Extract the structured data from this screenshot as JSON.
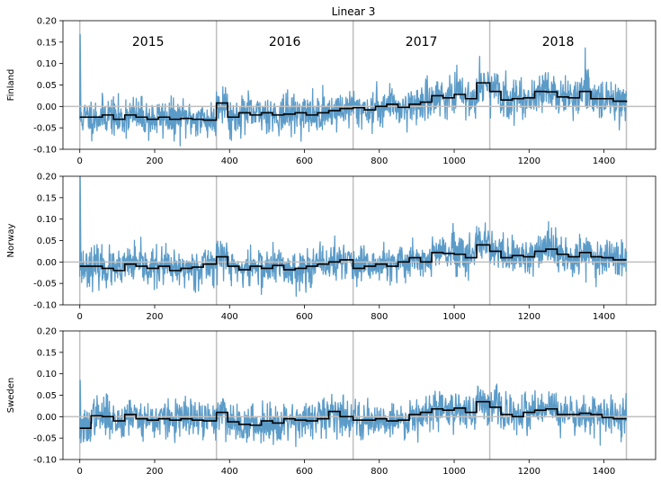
{
  "figure": {
    "title": "Linear 3"
  },
  "chart_data": [
    {
      "type": "line",
      "ylabel": "Finland",
      "title": "Linear 3",
      "xlim": [
        -45,
        1538
      ],
      "ylim": [
        -0.1,
        0.2
      ],
      "xticks": [
        0,
        200,
        400,
        600,
        800,
        1000,
        1200,
        1400
      ],
      "yticks": [
        -0.1,
        -0.05,
        0.0,
        0.05,
        0.1,
        0.15,
        0.2
      ],
      "xtick_labels": [
        "0",
        "200",
        "400",
        "600",
        "800",
        "1000",
        "1200",
        "1400"
      ],
      "ytick_labels": [
        "-0.10",
        "-0.05",
        "0.00",
        "0.05",
        "0.10",
        "0.15",
        "0.20"
      ],
      "year_boundaries": [
        0,
        365,
        730,
        1095,
        1460
      ],
      "year_labels": [
        "2015",
        "2016",
        "2017",
        "2018"
      ],
      "hline": 0.0,
      "colors": {
        "daily": "#5b9bc8",
        "fitted": "#000000",
        "reference": "#bfbfbf"
      },
      "series": [
        {
          "name": "daily",
          "seed": 11,
          "noise": 0.022,
          "start_spike": 0.168
        },
        {
          "name": "fitted",
          "steps": [
            [
              0,
              -0.025
            ],
            [
              30,
              -0.025
            ],
            [
              60,
              -0.02
            ],
            [
              90,
              -0.03
            ],
            [
              120,
              -0.02
            ],
            [
              150,
              -0.025
            ],
            [
              180,
              -0.03
            ],
            [
              210,
              -0.025
            ],
            [
              240,
              -0.03
            ],
            [
              270,
              -0.028
            ],
            [
              300,
              -0.03
            ],
            [
              330,
              -0.032
            ],
            [
              365,
              0.008
            ],
            [
              395,
              -0.025
            ],
            [
              425,
              -0.015
            ],
            [
              455,
              -0.02
            ],
            [
              485,
              -0.015
            ],
            [
              515,
              -0.02
            ],
            [
              545,
              -0.018
            ],
            [
              575,
              -0.015
            ],
            [
              605,
              -0.02
            ],
            [
              635,
              -0.015
            ],
            [
              665,
              -0.01
            ],
            [
              695,
              -0.005
            ],
            [
              730,
              -0.003
            ],
            [
              760,
              -0.008
            ],
            [
              790,
              0.0
            ],
            [
              820,
              0.005
            ],
            [
              850,
              -0.002
            ],
            [
              880,
              0.005
            ],
            [
              910,
              0.01
            ],
            [
              940,
              0.025
            ],
            [
              970,
              0.02
            ],
            [
              1000,
              0.028
            ],
            [
              1030,
              0.018
            ],
            [
              1060,
              0.055
            ],
            [
              1095,
              0.035
            ],
            [
              1125,
              0.015
            ],
            [
              1155,
              0.018
            ],
            [
              1185,
              0.02
            ],
            [
              1215,
              0.035
            ],
            [
              1245,
              0.034
            ],
            [
              1275,
              0.022
            ],
            [
              1305,
              0.02
            ],
            [
              1335,
              0.035
            ],
            [
              1365,
              0.018
            ],
            [
              1395,
              0.018
            ],
            [
              1425,
              0.012
            ],
            [
              1460,
              0.01
            ]
          ]
        }
      ]
    },
    {
      "type": "line",
      "ylabel": "Norway",
      "xlim": [
        -45,
        1538
      ],
      "ylim": [
        -0.1,
        0.2
      ],
      "xticks": [
        0,
        200,
        400,
        600,
        800,
        1000,
        1200,
        1400
      ],
      "yticks": [
        -0.1,
        -0.05,
        0.0,
        0.05,
        0.1,
        0.15,
        0.2
      ],
      "xtick_labels": [
        "0",
        "200",
        "400",
        "600",
        "800",
        "1000",
        "1200",
        "1400"
      ],
      "ytick_labels": [
        "-0.10",
        "-0.05",
        "0.00",
        "0.05",
        "0.10",
        "0.15",
        "0.20"
      ],
      "year_boundaries": [
        0,
        365,
        730,
        1095,
        1460
      ],
      "hline": 0.0,
      "colors": {
        "daily": "#5b9bc8",
        "fitted": "#000000",
        "reference": "#bfbfbf"
      },
      "series": [
        {
          "name": "daily",
          "seed": 23,
          "noise": 0.022,
          "start_spike": 0.2
        },
        {
          "name": "fitted",
          "steps": [
            [
              0,
              -0.01
            ],
            [
              30,
              -0.01
            ],
            [
              60,
              -0.015
            ],
            [
              90,
              -0.02
            ],
            [
              120,
              -0.005
            ],
            [
              150,
              -0.01
            ],
            [
              180,
              -0.015
            ],
            [
              210,
              -0.01
            ],
            [
              240,
              -0.02
            ],
            [
              270,
              -0.015
            ],
            [
              300,
              -0.012
            ],
            [
              330,
              -0.005
            ],
            [
              365,
              0.012
            ],
            [
              395,
              -0.01
            ],
            [
              425,
              -0.018
            ],
            [
              455,
              -0.01
            ],
            [
              485,
              -0.015
            ],
            [
              515,
              -0.008
            ],
            [
              545,
              -0.018
            ],
            [
              575,
              -0.015
            ],
            [
              605,
              -0.01
            ],
            [
              635,
              -0.005
            ],
            [
              665,
              0.0
            ],
            [
              695,
              0.005
            ],
            [
              730,
              -0.015
            ],
            [
              760,
              -0.01
            ],
            [
              790,
              -0.005
            ],
            [
              820,
              -0.01
            ],
            [
              850,
              0.0
            ],
            [
              880,
              0.01
            ],
            [
              910,
              0.0
            ],
            [
              940,
              0.022
            ],
            [
              970,
              0.02
            ],
            [
              1000,
              0.018
            ],
            [
              1030,
              0.01
            ],
            [
              1060,
              0.04
            ],
            [
              1095,
              0.025
            ],
            [
              1125,
              0.01
            ],
            [
              1155,
              0.015
            ],
            [
              1185,
              0.012
            ],
            [
              1215,
              0.025
            ],
            [
              1245,
              0.03
            ],
            [
              1275,
              0.018
            ],
            [
              1305,
              0.012
            ],
            [
              1335,
              0.022
            ],
            [
              1365,
              0.012
            ],
            [
              1395,
              0.01
            ],
            [
              1425,
              0.005
            ],
            [
              1460,
              0.005
            ]
          ]
        }
      ]
    },
    {
      "type": "line",
      "ylabel": "Sweden",
      "xlim": [
        -45,
        1538
      ],
      "ylim": [
        -0.1,
        0.2
      ],
      "xticks": [
        0,
        200,
        400,
        600,
        800,
        1000,
        1200,
        1400
      ],
      "yticks": [
        -0.1,
        -0.05,
        0.0,
        0.05,
        0.1,
        0.15,
        0.2
      ],
      "xtick_labels": [
        "0",
        "200",
        "400",
        "600",
        "800",
        "1000",
        "1200",
        "1400"
      ],
      "ytick_labels": [
        "-0.10",
        "-0.05",
        "0.00",
        "0.05",
        "0.10",
        "0.15",
        "0.20"
      ],
      "year_boundaries": [
        0,
        365,
        730,
        1095,
        1460
      ],
      "hline": 0.0,
      "colors": {
        "daily": "#5b9bc8",
        "fitted": "#000000",
        "reference": "#bfbfbf"
      },
      "series": [
        {
          "name": "daily",
          "seed": 37,
          "noise": 0.022,
          "start_spike": 0.085
        },
        {
          "name": "fitted",
          "steps": [
            [
              0,
              -0.027
            ],
            [
              30,
              0.002
            ],
            [
              60,
              0.0
            ],
            [
              90,
              -0.01
            ],
            [
              120,
              0.005
            ],
            [
              150,
              -0.005
            ],
            [
              180,
              -0.008
            ],
            [
              210,
              -0.005
            ],
            [
              240,
              -0.008
            ],
            [
              270,
              -0.005
            ],
            [
              300,
              -0.008
            ],
            [
              330,
              -0.01
            ],
            [
              365,
              0.01
            ],
            [
              395,
              -0.012
            ],
            [
              425,
              -0.018
            ],
            [
              455,
              -0.02
            ],
            [
              485,
              -0.01
            ],
            [
              515,
              -0.015
            ],
            [
              545,
              -0.005
            ],
            [
              575,
              -0.008
            ],
            [
              605,
              -0.01
            ],
            [
              635,
              -0.005
            ],
            [
              665,
              0.012
            ],
            [
              695,
              0.0
            ],
            [
              730,
              -0.008
            ],
            [
              760,
              -0.008
            ],
            [
              790,
              -0.005
            ],
            [
              820,
              -0.01
            ],
            [
              850,
              -0.008
            ],
            [
              880,
              0.005
            ],
            [
              910,
              0.01
            ],
            [
              940,
              0.018
            ],
            [
              970,
              0.015
            ],
            [
              1000,
              0.02
            ],
            [
              1030,
              0.01
            ],
            [
              1060,
              0.035
            ],
            [
              1095,
              0.022
            ],
            [
              1125,
              0.005
            ],
            [
              1155,
              0.0
            ],
            [
              1185,
              0.01
            ],
            [
              1215,
              0.015
            ],
            [
              1245,
              0.018
            ],
            [
              1275,
              0.005
            ],
            [
              1305,
              0.005
            ],
            [
              1335,
              0.008
            ],
            [
              1365,
              0.005
            ],
            [
              1395,
              -0.002
            ],
            [
              1425,
              -0.005
            ],
            [
              1460,
              -0.005
            ]
          ]
        }
      ]
    }
  ]
}
